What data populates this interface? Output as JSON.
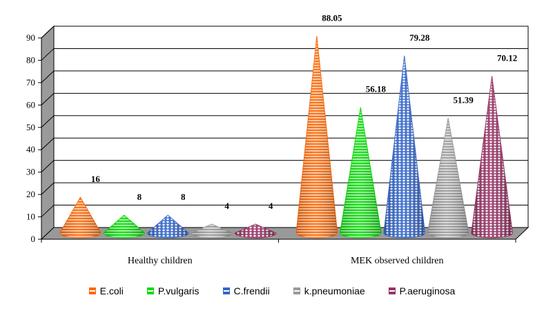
{
  "chart_data": {
    "type": "bar",
    "bar_shape": "cone",
    "categories": [
      "Healthy children",
      "MEK observed children"
    ],
    "series": [
      {
        "name": "E.coli",
        "values": [
          16,
          88.05
        ],
        "color": "#ff6600",
        "stripe": "#ffffff"
      },
      {
        "name": "P.vulgaris",
        "values": [
          8,
          56.18
        ],
        "color": "#00dd00",
        "stripe": "#ffffff"
      },
      {
        "name": "C.frendii",
        "values": [
          8,
          79.28
        ],
        "color": "#3366cc",
        "stripe": "#ffffff"
      },
      {
        "name": "k.pneumoniae",
        "values": [
          4,
          51.39
        ],
        "color": "#999999",
        "stripe": "#ffffff"
      },
      {
        "name": "P.aeruginosa",
        "values": [
          4,
          70.12
        ],
        "color": "#993366",
        "stripe": "#ffffff"
      }
    ],
    "data_labels": [
      [
        "16",
        "88.05"
      ],
      [
        "8",
        "56.18"
      ],
      [
        "8",
        "79.28"
      ],
      [
        "4",
        "51.39"
      ],
      [
        "4",
        "70.12"
      ]
    ],
    "y_ticks": [
      "0",
      "10",
      "20",
      "30",
      "40",
      "50",
      "60",
      "70",
      "80",
      "90"
    ],
    "ylim": [
      0,
      90
    ],
    "grid": true,
    "legend_position": "bottom",
    "title": "",
    "xlabel": "",
    "ylabel": ""
  }
}
